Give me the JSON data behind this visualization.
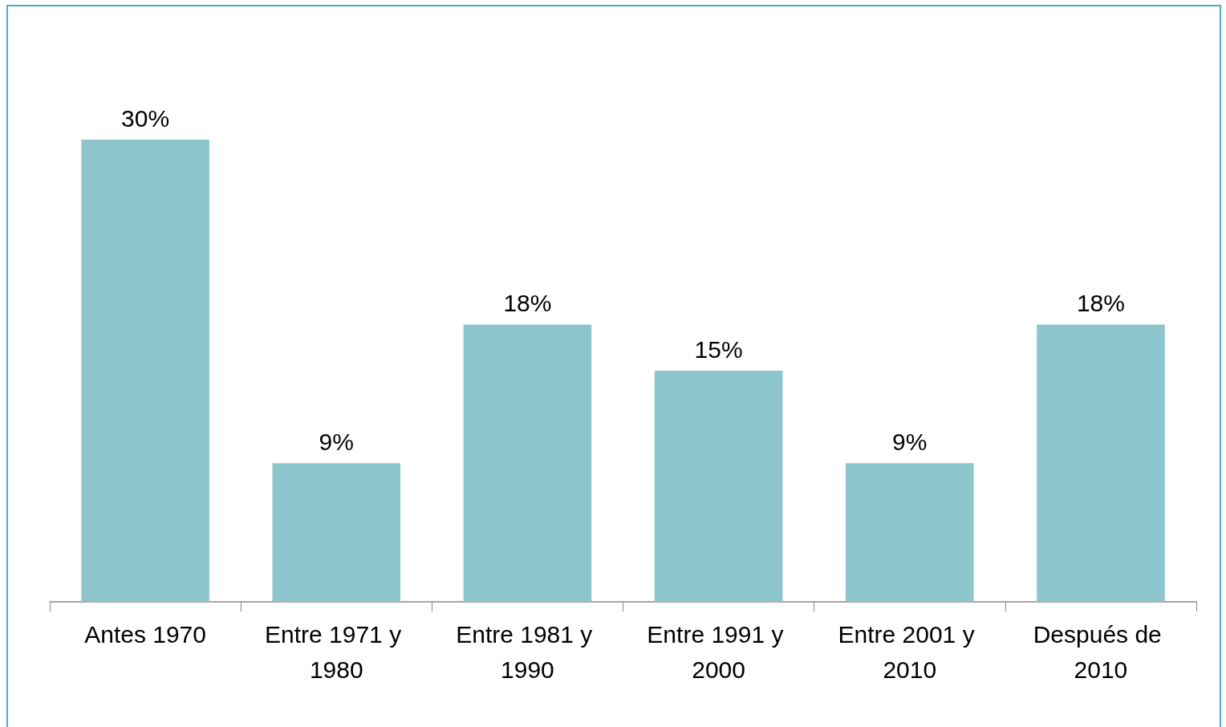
{
  "chart_data": {
    "type": "bar",
    "categories": [
      "Antes 1970",
      "Entre 1971 y 1980",
      "Entre 1981 y 1990",
      "Entre 1991 y 2000",
      "Entre 2001 y 2010",
      "Después de 2010"
    ],
    "values": [
      30,
      9,
      18,
      15,
      9,
      18
    ],
    "value_labels": [
      "30%",
      "9%",
      "18%",
      "15%",
      "9%",
      "18%"
    ],
    "color": "#8cc5cc"
  }
}
